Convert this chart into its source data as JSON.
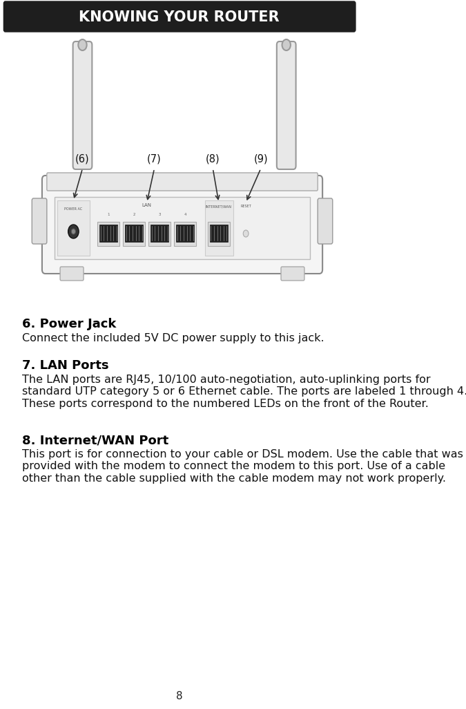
{
  "title": "KNOWING YOUR ROUTER",
  "title_bg": "#1e1e1e",
  "title_color": "#ffffff",
  "page_bg": "#ffffff",
  "page_number": "8",
  "section6_heading": "6. Power Jack",
  "section6_body": "Connect the included 5V DC power supply to this jack.",
  "section7_heading": "7. LAN Ports",
  "section7_body": "The LAN ports are RJ45, 10/100 auto-negotiation, auto-uplinking ports for\nstandard UTP category 5 or 6 Ethernet cable. The ports are labeled 1 through 4.\nThese ports correspond to the numbered LEDs on the front of the Router.",
  "section8_heading": "8. Internet/WAN Port",
  "section8_body": "This port is for connection to your cable or DSL modem. Use the cable that was\nprovided with the modem to connect the modem to this port. Use of a cable\nother than the cable supplied with the cable modem may not work properly.",
  "label6": "(6)",
  "label7": "(7)",
  "label8": "(8)",
  "label9": "(9)",
  "body_font_size": 11.5,
  "heading_font_size": 13,
  "title_font_size": 15
}
